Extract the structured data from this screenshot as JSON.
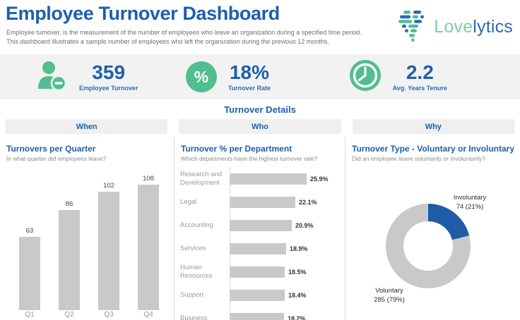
{
  "colors": {
    "accent_blue": "#1e5fad",
    "kpi_label_blue": "#2e6cb5",
    "green": "#52be8f",
    "bar_gray": "#c9c9c9",
    "donut_blue": "#1f5ba6",
    "logo_green": "#7ccfa5",
    "logo_blue": "#2c6bb4",
    "band_gray": "#f2f2f2",
    "subtitle_gray": "#6e6e6e",
    "axis_gray": "#9a9a9a"
  },
  "header": {
    "title": "Employee Turnover Dashboard",
    "subtitle_line1": "Employee turnover, is the measurement of the number of employees who leave an organization during a specified time period.",
    "subtitle_line2": "This dashboard illustrates a sample number of employees who left the organization during the previous 12 months.",
    "logo": {
      "icon": "heart-dashes-icon",
      "love": "Love",
      "lytics": "lytics"
    }
  },
  "kpis": [
    {
      "icon": "person-minus-icon",
      "value": "359",
      "label": "Employee Turnover"
    },
    {
      "icon": "percent-icon",
      "glyph": "%",
      "value": "18%",
      "label": "Turnover Rate"
    },
    {
      "icon": "clock-icon",
      "value": "2.2",
      "label": "Avg. Years Tenure"
    }
  ],
  "details": {
    "title": "Turnover Details",
    "sections": [
      {
        "label": "When"
      },
      {
        "label": "Who"
      },
      {
        "label": "Why"
      }
    ]
  },
  "chart_data": [
    {
      "type": "bar",
      "title": "Turnovers per Quarter",
      "subtitle": "In what quarter did employees leave?",
      "categories": [
        "Q1",
        "Q2",
        "Q3",
        "Q4"
      ],
      "values": [
        63,
        86,
        102,
        108
      ],
      "ylim": [
        0,
        110
      ],
      "bar_color": "#c9c9c9",
      "data_labels": true,
      "grid": false
    },
    {
      "type": "bar",
      "orientation": "horizontal",
      "title": "Turnover % per Department",
      "subtitle": "Which departments have the highest turnover rate?",
      "categories": [
        "Research and Development",
        "Legal",
        "Accounting",
        "Services",
        "Human Resources",
        "Support",
        "Business"
      ],
      "values": [
        25.9,
        22.1,
        20.9,
        18.9,
        18.5,
        18.4,
        18.2
      ],
      "value_suffix": "%",
      "xlim": [
        0,
        27
      ],
      "bar_color": "#c9c9c9",
      "data_labels": true,
      "grid": false
    },
    {
      "type": "pie",
      "donut": true,
      "title": "Turnover Type - Voluntary or Involuntary",
      "subtitle": "Did an employee leave voluntarily or involuntarily?",
      "slices": [
        {
          "label": "Involuntary",
          "count": 74,
          "percent": 21,
          "color": "#1f5ba6"
        },
        {
          "label": "Voluntary",
          "count": 285,
          "percent": 79,
          "color": "#c9c9c9"
        }
      ],
      "start_angle": "12 o'clock, clockwise",
      "legend": "labels beside slices"
    }
  ]
}
